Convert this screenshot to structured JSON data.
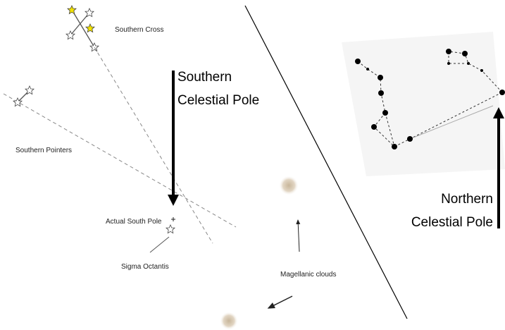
{
  "labels": {
    "southern_cross": "Southern Cross",
    "southern_pole": [
      "Southern",
      "Celestial Pole"
    ],
    "southern_pointers": "Southern Pointers",
    "actual_south_pole": "Actual South Pole",
    "sigma_octantis": "Sigma Octantis",
    "magellanic_clouds": "Magellanic clouds",
    "northern_pole": [
      "Northern",
      "Celestial Pole"
    ]
  }
}
